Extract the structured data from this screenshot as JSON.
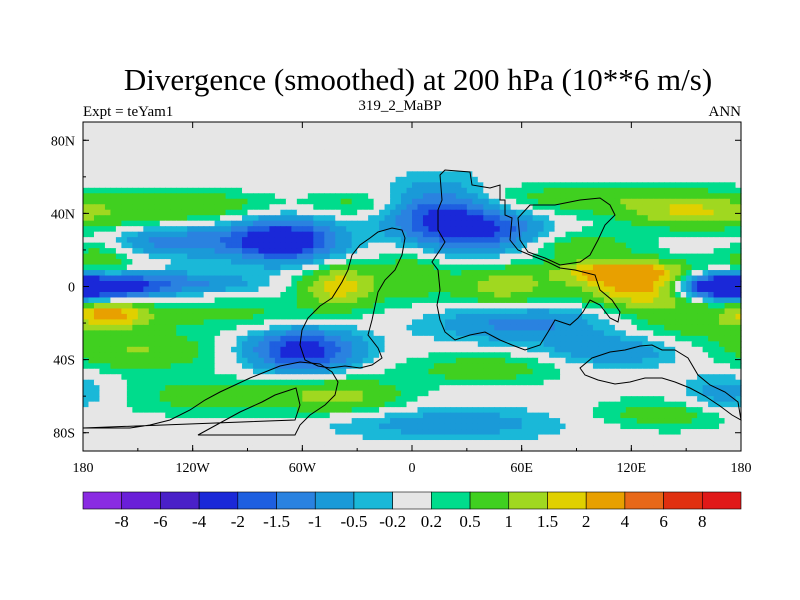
{
  "chart_data": {
    "type": "heatmap",
    "title": "Divergence (smoothed) at 200 hPa (10**6 m/s)",
    "left_string": "Expt = teYam1",
    "center_string": "319_2_MaBP",
    "right_string": "ANN",
    "x": {
      "range": [
        -180,
        180
      ],
      "ticks": [
        -180,
        -120,
        -60,
        0,
        60,
        120,
        180
      ],
      "tick_labels": [
        "180",
        "120W",
        "60W",
        "0",
        "60E",
        "120E",
        "180"
      ]
    },
    "y": {
      "range": [
        -90,
        90
      ],
      "ticks": [
        80,
        40,
        0,
        -40,
        -80
      ],
      "tick_labels": [
        "80N",
        "40N",
        "0",
        "40S",
        "80S"
      ]
    },
    "levels": [
      -8,
      -6,
      -4,
      -2,
      -1.5,
      -1,
      -0.5,
      -0.2,
      0.2,
      0.5,
      1,
      1.5,
      2,
      4,
      6,
      8
    ],
    "level_labels": [
      "-8",
      "-6",
      "-4",
      "-2",
      "-1.5",
      "-1",
      "-0.5",
      "-0.2",
      "0.2",
      "0.5",
      "1",
      "1.5",
      "2",
      "4",
      "6",
      "8"
    ],
    "colors": [
      "#8a2be2",
      "#6a1fd8",
      "#4a20c8",
      "#1a28d8",
      "#1e5fe0",
      "#2a82e0",
      "#1a9ad8",
      "#1ab8d8",
      "#e6e6e6",
      "#00dc8c",
      "#40d020",
      "#a0d820",
      "#e0d000",
      "#e8a000",
      "#e86818",
      "#e03010",
      "#e01818"
    ],
    "features": [
      {
        "lon": -150,
        "lat": 40,
        "v": 0.7,
        "sx": 35,
        "sy": 7
      },
      {
        "lon": -110,
        "lat": 45,
        "v": 0.6,
        "sx": 25,
        "sy": 5
      },
      {
        "lon": -30,
        "lat": 45,
        "v": 0.6,
        "sx": 20,
        "sy": 5
      },
      {
        "lon": 100,
        "lat": 48,
        "v": 0.8,
        "sx": 55,
        "sy": 6
      },
      {
        "lon": 150,
        "lat": 40,
        "v": 1.2,
        "sx": 25,
        "sy": 6
      },
      {
        "lon": -170,
        "lat": 15,
        "v": 0.9,
        "sx": 15,
        "sy": 10
      },
      {
        "lon": -130,
        "lat": 25,
        "v": -1.3,
        "sx": 30,
        "sy": 6
      },
      {
        "lon": -70,
        "lat": 25,
        "v": -2.8,
        "sx": 20,
        "sy": 8
      },
      {
        "lon": 15,
        "lat": 38,
        "v": -2.2,
        "sx": 20,
        "sy": 12
      },
      {
        "lon": 45,
        "lat": 30,
        "v": -1.6,
        "sx": 20,
        "sy": 8
      },
      {
        "lon": 90,
        "lat": 22,
        "v": 0.8,
        "sx": 25,
        "sy": 6
      },
      {
        "lon": -165,
        "lat": 0,
        "v": -2.5,
        "sx": 20,
        "sy": 5
      },
      {
        "lon": -120,
        "lat": 2,
        "v": -1.0,
        "sx": 25,
        "sy": 4
      },
      {
        "lon": -40,
        "lat": 0,
        "v": 1.8,
        "sx": 15,
        "sy": 8
      },
      {
        "lon": 0,
        "lat": 8,
        "v": 0.8,
        "sx": 15,
        "sy": 12
      },
      {
        "lon": 50,
        "lat": 0,
        "v": 1.3,
        "sx": 20,
        "sy": 8
      },
      {
        "lon": 110,
        "lat": 8,
        "v": 2.0,
        "sx": 20,
        "sy": 4
      },
      {
        "lon": 130,
        "lat": 0,
        "v": 2.5,
        "sx": 25,
        "sy": 8
      },
      {
        "lon": 165,
        "lat": 0,
        "v": -3.5,
        "sx": 18,
        "sy": 5
      },
      {
        "lon": -165,
        "lat": -15,
        "v": 2.0,
        "sx": 15,
        "sy": 5
      },
      {
        "lon": -100,
        "lat": -15,
        "v": 0.6,
        "sx": 40,
        "sy": 6
      },
      {
        "lon": 60,
        "lat": -20,
        "v": -1.2,
        "sx": 35,
        "sy": 7
      },
      {
        "lon": 150,
        "lat": -20,
        "v": 0.7,
        "sx": 30,
        "sy": 8
      },
      {
        "lon": -150,
        "lat": -35,
        "v": 1.0,
        "sx": 30,
        "sy": 8
      },
      {
        "lon": -60,
        "lat": -35,
        "v": -2.5,
        "sx": 20,
        "sy": 8
      },
      {
        "lon": 40,
        "lat": -45,
        "v": 0.8,
        "sx": 30,
        "sy": 6
      },
      {
        "lon": 110,
        "lat": -35,
        "v": -1.0,
        "sx": 25,
        "sy": 6
      },
      {
        "lon": -110,
        "lat": -60,
        "v": 0.8,
        "sx": 30,
        "sy": 7
      },
      {
        "lon": -40,
        "lat": -60,
        "v": 1.2,
        "sx": 25,
        "sy": 7
      },
      {
        "lon": 20,
        "lat": -75,
        "v": -0.8,
        "sx": 45,
        "sy": 6
      },
      {
        "lon": 140,
        "lat": -70,
        "v": 0.8,
        "sx": 30,
        "sy": 6
      },
      {
        "lon": 170,
        "lat": -60,
        "v": -0.8,
        "sx": 15,
        "sy": 8
      }
    ]
  }
}
